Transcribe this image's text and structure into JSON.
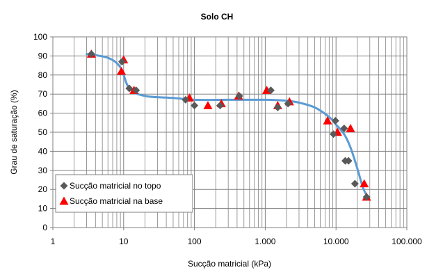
{
  "chart_data": {
    "type": "scatter",
    "title": "Solo CH",
    "xlabel": "Sucção matricial (kPa)",
    "ylabel": "Grau de saturação (%)",
    "xscale": "log",
    "xlim": [
      1,
      100000
    ],
    "ylim": [
      0,
      100
    ],
    "grid": "vertical-log-minor",
    "legend_position": "bottom-left",
    "x_ticks": [
      {
        "value": 1,
        "label": "1"
      },
      {
        "value": 10,
        "label": "10"
      },
      {
        "value": 100,
        "label": "100"
      },
      {
        "value": 1000,
        "label": "1.000"
      },
      {
        "value": 10000,
        "label": "10.000"
      },
      {
        "value": 100000,
        "label": "100.000"
      }
    ],
    "y_ticks": [
      {
        "value": 0,
        "label": "0"
      },
      {
        "value": 10,
        "label": "10"
      },
      {
        "value": 20,
        "label": "20"
      },
      {
        "value": 30,
        "label": "30"
      },
      {
        "value": 40,
        "label": "40"
      },
      {
        "value": 50,
        "label": "50"
      },
      {
        "value": 60,
        "label": "60"
      },
      {
        "value": 70,
        "label": "70"
      },
      {
        "value": 80,
        "label": "80"
      },
      {
        "value": 90,
        "label": "90"
      },
      {
        "value": 100,
        "label": "100"
      }
    ],
    "series": [
      {
        "name": "Sucção matricial no topo",
        "marker": "diamond",
        "color": "#595959",
        "x": [
          3.5,
          9.5,
          12,
          15,
          75,
          100,
          230,
          430,
          1200,
          1500,
          2100,
          9200,
          9800,
          13000,
          13500,
          15000,
          18500,
          27000
        ],
        "y": [
          91,
          87,
          73,
          72,
          67,
          64,
          64,
          69,
          72,
          63,
          65,
          49,
          56,
          52,
          35,
          35,
          23,
          16
        ]
      },
      {
        "name": "Sucção matricial na base",
        "marker": "triangle",
        "color": "#ff0000",
        "x": [
          3.5,
          9.3,
          10,
          14,
          85,
          155,
          240,
          420,
          1050,
          1500,
          2200,
          7600,
          10500,
          16000,
          25000,
          27000
        ],
        "y": [
          91,
          82,
          88,
          72,
          68,
          64,
          65,
          69,
          72,
          64,
          66,
          56,
          50,
          52,
          23,
          16
        ]
      }
    ],
    "fit_curve": {
      "color": "#5b9bd5",
      "x": [
        3,
        6,
        9,
        12,
        20,
        50,
        100,
        300,
        1000,
        2000,
        3000,
        5000,
        8000,
        10000,
        13000,
        16000,
        20000,
        24000,
        28000
      ],
      "y": [
        91,
        89,
        84,
        73,
        69,
        68,
        67,
        67,
        67,
        66.5,
        65.5,
        63,
        58,
        54,
        49,
        42,
        31,
        21,
        16
      ]
    }
  }
}
